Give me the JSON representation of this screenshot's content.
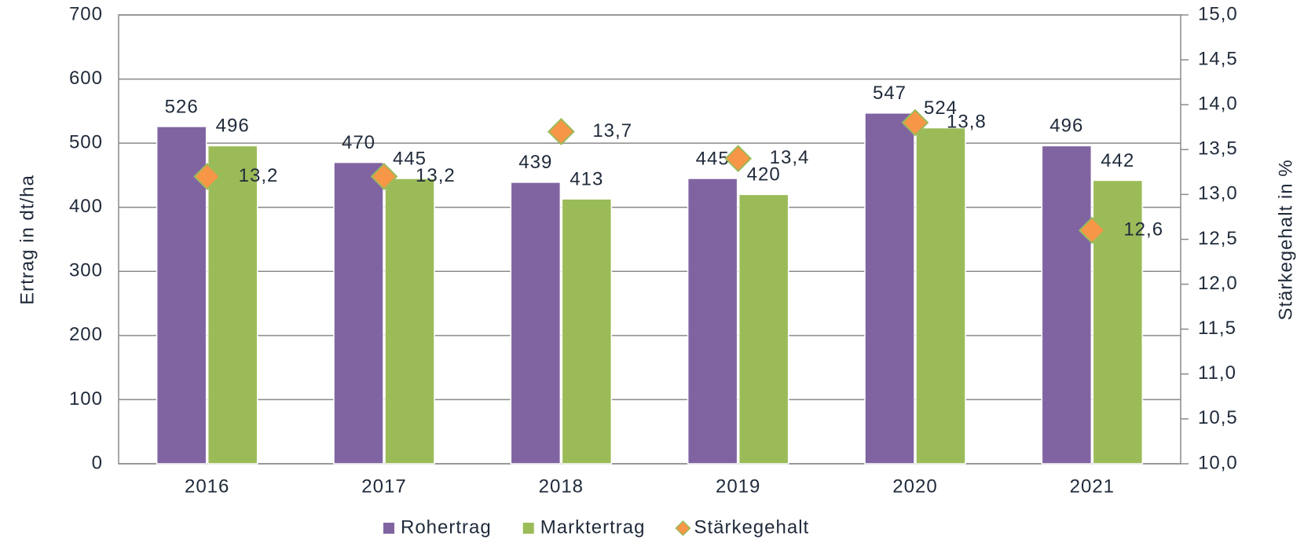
{
  "chart_data": {
    "type": "bar",
    "categories": [
      "2016",
      "2017",
      "2018",
      "2019",
      "2020",
      "2021"
    ],
    "series": [
      {
        "name": "Rohertrag",
        "color": "#8064a2",
        "values": [
          526,
          470,
          439,
          445,
          547,
          496
        ]
      },
      {
        "name": "Marktertrag",
        "color": "#9bbb59",
        "values": [
          496,
          445,
          413,
          420,
          524,
          442
        ]
      },
      {
        "name": "Stärkegehalt",
        "color": "#f79646",
        "axis": "y2",
        "values": [
          13.2,
          13.2,
          13.7,
          13.4,
          13.8,
          12.6
        ],
        "value_labels": [
          "13,2",
          "13,2",
          "13,7",
          "13,4",
          "13,8",
          "12,6"
        ]
      }
    ],
    "y_label": "Ertrag in dt/ha",
    "y2_label": "Stärkegehalt in %",
    "ylim": [
      0,
      700
    ],
    "yticks": [
      0,
      100,
      200,
      300,
      400,
      500,
      600,
      700
    ],
    "y2lim": [
      10,
      15
    ],
    "y2ticks": [
      {
        "value": 10,
        "label": "10,0"
      },
      {
        "value": 10.5,
        "label": "10,5"
      },
      {
        "value": 11,
        "label": "11,0"
      },
      {
        "value": 11.5,
        "label": "11,5"
      },
      {
        "value": 12,
        "label": "12,0"
      },
      {
        "value": 12.5,
        "label": "12,5"
      },
      {
        "value": 13,
        "label": "13,0"
      },
      {
        "value": 13.5,
        "label": "13,5"
      },
      {
        "value": 14,
        "label": "14,0"
      },
      {
        "value": 14.5,
        "label": "14,5"
      },
      {
        "value": 15,
        "label": "15,0"
      }
    ],
    "grid": true,
    "legend": "bottom"
  }
}
